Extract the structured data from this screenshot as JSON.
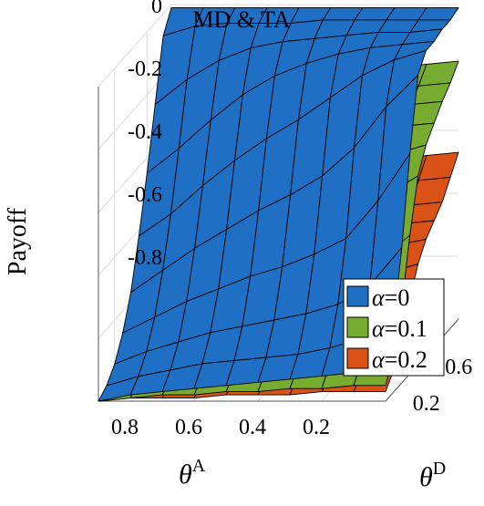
{
  "chart_data": {
    "type": "surface",
    "title": "MD & TA",
    "zlabel": "Payoff",
    "xlabel": {
      "base": "θ",
      "sup": "A"
    },
    "ylabel": {
      "base": "θ",
      "sup": "D"
    },
    "x_ticks": [
      "0.8",
      "0.6",
      "0.4",
      "0.2"
    ],
    "x_tick_values": [
      0.8,
      0.6,
      0.4,
      0.2
    ],
    "y_ticks": [
      "0.2",
      "0.6"
    ],
    "y_tick_values": [
      0.2,
      0.6
    ],
    "z_ticks": [
      "0",
      "-0.2",
      "-0.4",
      "-0.6",
      "-0.8"
    ],
    "z_tick_values": [
      0,
      -0.2,
      -0.4,
      -0.6,
      -0.8
    ],
    "xlim": [
      0,
      0.9
    ],
    "ylim": [
      0,
      0.9
    ],
    "zlim": [
      -1.0,
      0
    ],
    "grid": true,
    "legend_position": "bottom-right",
    "legend": [
      {
        "symbol": "α",
        "value": "=0",
        "color": "#1f6fc4"
      },
      {
        "symbol": "α",
        "value": "=0.1",
        "color": "#77ac30"
      },
      {
        "symbol": "α",
        "value": "=0.2",
        "color": "#d95319"
      }
    ],
    "series": [
      {
        "name": "α=0",
        "color": "#1f6fc4",
        "x": [
          0.9,
          0.8,
          0.7,
          0.6,
          0.5,
          0.4,
          0.3,
          0.2,
          0.1,
          0.0
        ],
        "y": [
          0.0,
          0.1,
          0.2,
          0.3,
          0.4,
          0.5,
          0.6,
          0.7,
          0.8,
          0.9
        ],
        "z": [
          [
            -1.0,
            -0.98,
            -0.94,
            -0.87,
            -0.77,
            -0.62,
            -0.45,
            -0.26,
            -0.07,
            -0.01
          ],
          [
            -0.98,
            -0.95,
            -0.9,
            -0.82,
            -0.7,
            -0.55,
            -0.37,
            -0.18,
            -0.04,
            -0.01
          ],
          [
            -0.97,
            -0.93,
            -0.87,
            -0.77,
            -0.63,
            -0.46,
            -0.28,
            -0.12,
            -0.03,
            -0.01
          ],
          [
            -0.96,
            -0.91,
            -0.84,
            -0.73,
            -0.57,
            -0.38,
            -0.2,
            -0.08,
            -0.03,
            -0.01
          ],
          [
            -0.95,
            -0.9,
            -0.82,
            -0.69,
            -0.51,
            -0.31,
            -0.14,
            -0.06,
            -0.03,
            -0.01
          ],
          [
            -0.94,
            -0.89,
            -0.8,
            -0.66,
            -0.46,
            -0.25,
            -0.1,
            -0.05,
            -0.02,
            -0.01
          ],
          [
            -0.93,
            -0.88,
            -0.78,
            -0.62,
            -0.4,
            -0.18,
            -0.07,
            -0.04,
            -0.02,
            -0.01
          ],
          [
            -0.92,
            -0.86,
            -0.75,
            -0.57,
            -0.31,
            -0.11,
            -0.05,
            -0.03,
            -0.02,
            -0.01
          ],
          [
            -0.91,
            -0.83,
            -0.69,
            -0.45,
            -0.18,
            -0.06,
            -0.04,
            -0.03,
            -0.02,
            -0.01
          ],
          [
            -0.9,
            -0.78,
            -0.57,
            -0.3,
            -0.08,
            -0.03,
            -0.03,
            -0.02,
            -0.02,
            -0.01
          ]
        ]
      },
      {
        "name": "α=0.1",
        "color": "#77ac30",
        "x": [
          0.9,
          0.8,
          0.7,
          0.6,
          0.5,
          0.4,
          0.3,
          0.2,
          0.1,
          0.0
        ],
        "y": [
          0.0,
          0.1,
          0.2,
          0.3,
          0.4,
          0.5,
          0.6,
          0.7,
          0.8,
          0.9
        ],
        "z": [
          [
            -1.0,
            -0.99,
            -0.96,
            -0.91,
            -0.84,
            -0.75,
            -0.62,
            -0.48,
            -0.35,
            -0.28
          ],
          [
            -0.99,
            -0.97,
            -0.93,
            -0.87,
            -0.78,
            -0.67,
            -0.54,
            -0.41,
            -0.31,
            -0.26
          ],
          [
            -0.98,
            -0.96,
            -0.91,
            -0.84,
            -0.74,
            -0.61,
            -0.48,
            -0.37,
            -0.29,
            -0.25
          ],
          [
            -0.98,
            -0.95,
            -0.9,
            -0.82,
            -0.7,
            -0.56,
            -0.43,
            -0.34,
            -0.28,
            -0.24
          ],
          [
            -0.97,
            -0.94,
            -0.88,
            -0.79,
            -0.66,
            -0.51,
            -0.39,
            -0.32,
            -0.27,
            -0.23
          ],
          [
            -0.97,
            -0.93,
            -0.87,
            -0.77,
            -0.62,
            -0.47,
            -0.36,
            -0.3,
            -0.26,
            -0.22
          ],
          [
            -0.96,
            -0.92,
            -0.85,
            -0.74,
            -0.58,
            -0.43,
            -0.34,
            -0.29,
            -0.25,
            -0.21
          ],
          [
            -0.96,
            -0.91,
            -0.83,
            -0.7,
            -0.53,
            -0.39,
            -0.32,
            -0.27,
            -0.24,
            -0.2
          ],
          [
            -0.95,
            -0.9,
            -0.8,
            -0.64,
            -0.46,
            -0.36,
            -0.3,
            -0.26,
            -0.23,
            -0.19
          ],
          [
            -0.95,
            -0.88,
            -0.75,
            -0.56,
            -0.4,
            -0.33,
            -0.29,
            -0.25,
            -0.22,
            -0.18
          ]
        ]
      },
      {
        "name": "α=0.2",
        "color": "#d95319",
        "x": [
          0.9,
          0.8,
          0.7,
          0.6,
          0.5,
          0.4,
          0.3,
          0.2,
          0.1,
          0.0
        ],
        "y": [
          0.0,
          0.1,
          0.2,
          0.3,
          0.4,
          0.5,
          0.6,
          0.7,
          0.8,
          0.9
        ],
        "z": [
          [
            -1.0,
            -0.99,
            -0.97,
            -0.94,
            -0.9,
            -0.85,
            -0.78,
            -0.7,
            -0.62,
            -0.56
          ],
          [
            -0.99,
            -0.98,
            -0.96,
            -0.92,
            -0.88,
            -0.82,
            -0.75,
            -0.67,
            -0.6,
            -0.55
          ],
          [
            -0.99,
            -0.97,
            -0.95,
            -0.91,
            -0.86,
            -0.8,
            -0.72,
            -0.65,
            -0.59,
            -0.54
          ],
          [
            -0.99,
            -0.97,
            -0.94,
            -0.9,
            -0.84,
            -0.77,
            -0.7,
            -0.63,
            -0.58,
            -0.53
          ],
          [
            -0.98,
            -0.96,
            -0.93,
            -0.88,
            -0.82,
            -0.75,
            -0.68,
            -0.62,
            -0.57,
            -0.52
          ],
          [
            -0.98,
            -0.96,
            -0.92,
            -0.87,
            -0.8,
            -0.72,
            -0.66,
            -0.61,
            -0.56,
            -0.51
          ],
          [
            -0.98,
            -0.95,
            -0.91,
            -0.85,
            -0.77,
            -0.7,
            -0.64,
            -0.6,
            -0.55,
            -0.5
          ],
          [
            -0.97,
            -0.95,
            -0.9,
            -0.83,
            -0.74,
            -0.67,
            -0.62,
            -0.59,
            -0.54,
            -0.49
          ],
          [
            -0.97,
            -0.94,
            -0.88,
            -0.8,
            -0.71,
            -0.65,
            -0.61,
            -0.58,
            -0.53,
            -0.48
          ],
          [
            -0.97,
            -0.93,
            -0.86,
            -0.76,
            -0.68,
            -0.63,
            -0.6,
            -0.57,
            -0.52,
            -0.47
          ]
        ]
      }
    ]
  }
}
